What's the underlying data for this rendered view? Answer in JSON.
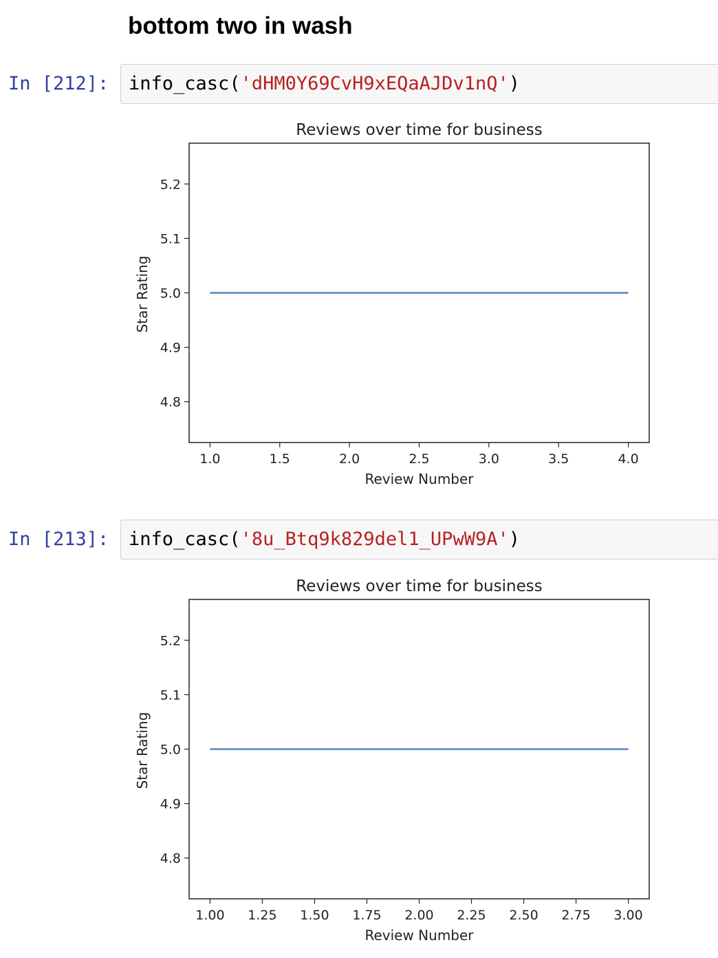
{
  "notebook": {
    "markdown_heading": "bottom two in wash",
    "cells": [
      {
        "prompt": "In [212]:",
        "code": {
          "func": "info_casc",
          "open": "(",
          "quote_open": "'",
          "arg": "dHM0Y69CvH9xEQaAJDv1nQ",
          "quote_close": "'",
          "close": ")"
        },
        "chart_data": {
          "type": "line",
          "title": "Reviews over time for business",
          "xlabel": "Review Number",
          "ylabel": "Star Rating",
          "x": [
            1.0,
            2.0,
            3.0,
            4.0
          ],
          "series": [
            {
              "values": [
                5.0,
                5.0,
                5.0,
                5.0
              ],
              "color": "#6c9acb"
            }
          ],
          "xlim": [
            0.85,
            4.15
          ],
          "ylim": [
            4.725,
            5.275
          ],
          "xticks": [
            "1.0",
            "1.5",
            "2.0",
            "2.5",
            "3.0",
            "3.5",
            "4.0"
          ],
          "xtick_values": [
            1.0,
            1.5,
            2.0,
            2.5,
            3.0,
            3.5,
            4.0
          ],
          "yticks": [
            "4.8",
            "4.9",
            "5.0",
            "5.1",
            "5.2"
          ],
          "ytick_values": [
            4.8,
            4.9,
            5.0,
            5.1,
            5.2
          ],
          "grid": false,
          "legend": "none"
        }
      },
      {
        "prompt": "In [213]:",
        "code": {
          "func": "info_casc",
          "open": "(",
          "quote_open": "'",
          "arg": "8u_Btq9k829del1_UPwW9A",
          "quote_close": "'",
          "close": ")"
        },
        "chart_data": {
          "type": "line",
          "title": "Reviews over time for business",
          "xlabel": "Review Number",
          "ylabel": "Star Rating",
          "x": [
            1.0,
            2.0,
            3.0
          ],
          "series": [
            {
              "values": [
                5.0,
                5.0,
                5.0
              ],
              "color": "#6c9acb"
            }
          ],
          "xlim": [
            0.9,
            3.1
          ],
          "ylim": [
            4.725,
            5.275
          ],
          "xticks": [
            "1.00",
            "1.25",
            "1.50",
            "1.75",
            "2.00",
            "2.25",
            "2.50",
            "2.75",
            "3.00"
          ],
          "xtick_values": [
            1.0,
            1.25,
            1.5,
            1.75,
            2.0,
            2.25,
            2.5,
            2.75,
            3.0
          ],
          "yticks": [
            "4.8",
            "4.9",
            "5.0",
            "5.1",
            "5.2"
          ],
          "ytick_values": [
            4.8,
            4.9,
            5.0,
            5.1,
            5.2
          ],
          "grid": false,
          "legend": "none"
        }
      }
    ]
  }
}
